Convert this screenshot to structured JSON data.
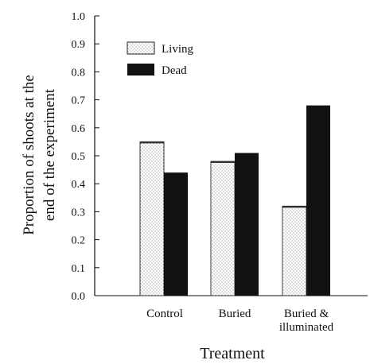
{
  "chart_data": {
    "type": "bar",
    "categories": [
      "Control",
      "Buried",
      "Buried & illuminated"
    ],
    "category_lines": [
      [
        "Control"
      ],
      [
        "Buried"
      ],
      [
        "Buried &",
        "illuminated"
      ]
    ],
    "series": [
      {
        "name": "Living",
        "values": [
          0.55,
          0.48,
          0.32
        ],
        "color": "#ffffff",
        "pattern": "dotted"
      },
      {
        "name": "Dead",
        "values": [
          0.44,
          0.51,
          0.68
        ],
        "color": "#111111",
        "pattern": "solid"
      }
    ],
    "xlabel": "Treatment",
    "ylabel_lines": [
      "Proportion of shoots at the",
      "end of the experiment"
    ],
    "ylim": [
      0,
      1.0
    ],
    "yticks": [
      "0.0",
      "0.1",
      "0.2",
      "0.3",
      "0.4",
      "0.5",
      "0.6",
      "0.7",
      "0.8",
      "0.9",
      "1.0"
    ],
    "legend_position": "top-left",
    "grid": false
  }
}
